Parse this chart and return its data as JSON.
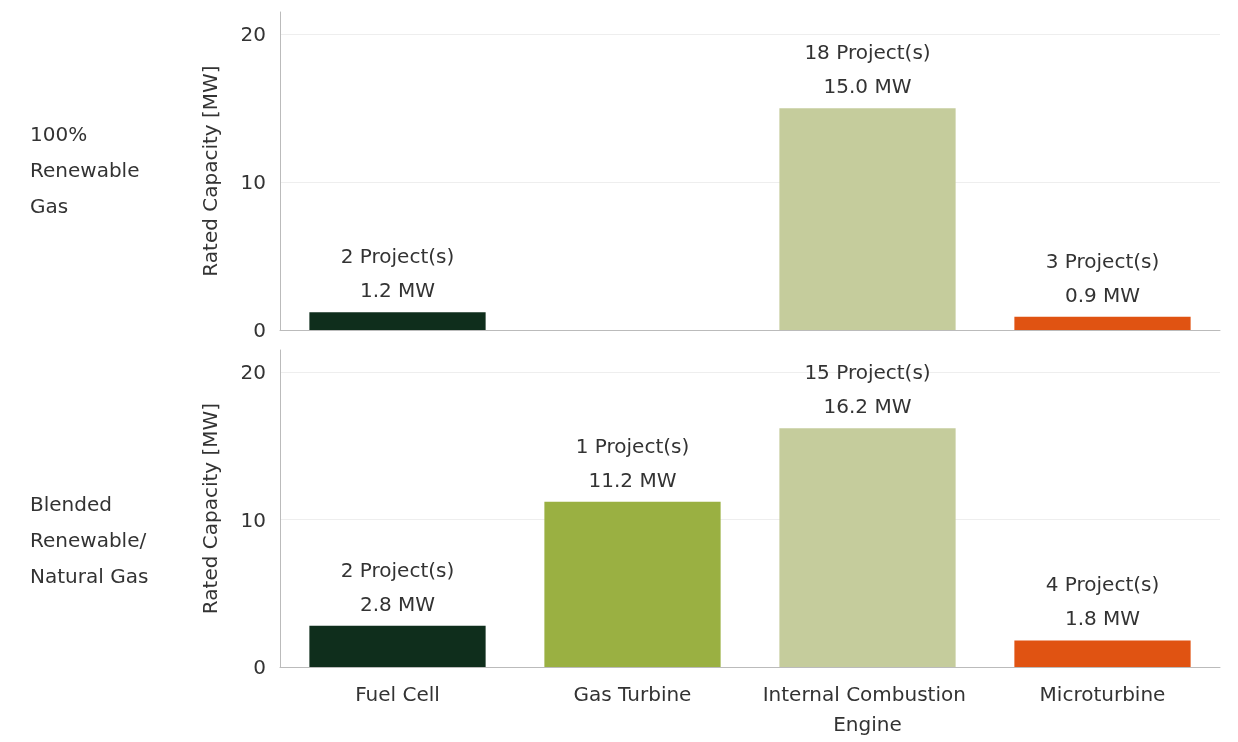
{
  "chart_data": [
    {
      "type": "bar",
      "title": "100% Renewable Gas",
      "ylabel": "Rated Capacity [MW]",
      "categories": [
        "Fuel Cell",
        "Gas Turbine",
        "Internal Combustion Engine",
        "Microturbine"
      ],
      "values": [
        1.2,
        null,
        15.0,
        0.9
      ],
      "colors": [
        "#0f2e1c",
        "#9ab042",
        "#c5cc9c",
        "#e05312"
      ],
      "value_labels": [
        "2 Project(s)\n1.2 MW",
        null,
        "18 Project(s)\n15.0 MW",
        "3 Project(s)\n0.9 MW"
      ],
      "ylim": [
        0,
        21.5
      ],
      "yticks": [
        0,
        10,
        20
      ],
      "grid": "y",
      "tick_labels": "y"
    },
    {
      "type": "bar",
      "title": "Blended Renewable/ Natural Gas",
      "ylabel": "Rated Capacity [MW]",
      "categories": [
        "Fuel Cell",
        "Gas Turbine",
        "Internal Combustion Engine",
        "Microturbine"
      ],
      "values": [
        2.8,
        11.2,
        16.2,
        1.8
      ],
      "colors": [
        "#0f2e1c",
        "#9ab042",
        "#c5cc9c",
        "#e05312"
      ],
      "value_labels": [
        "2 Project(s)\n2.8 MW",
        "1 Project(s)\n11.2 MW",
        "15 Project(s)\n16.2 MW",
        "4 Project(s)\n1.8 MW"
      ],
      "ylim": [
        0,
        21.5
      ],
      "yticks": [
        0,
        10,
        20
      ],
      "grid": "y"
    }
  ]
}
